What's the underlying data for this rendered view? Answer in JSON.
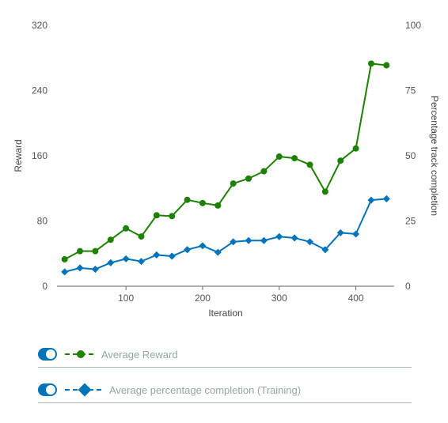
{
  "chart_data": {
    "type": "line",
    "xlabel": "Iteration",
    "ylabel_left": "Reward",
    "ylabel_right": "Percentage track completion",
    "xlim": [
      10,
      450
    ],
    "ylim_left": [
      0,
      320
    ],
    "ylim_right": [
      0,
      100
    ],
    "xticks": [
      100,
      200,
      300,
      400
    ],
    "yticks_left": [
      0,
      80,
      160,
      240,
      320
    ],
    "yticks_right": [
      0,
      25,
      50,
      75,
      100
    ],
    "x": [
      20,
      40,
      60,
      80,
      100,
      120,
      140,
      160,
      180,
      200,
      220,
      240,
      260,
      280,
      300,
      320,
      340,
      360,
      380,
      400,
      420,
      440
    ],
    "series": [
      {
        "name": "Average Reward",
        "axis": "left",
        "color": "#1d8102",
        "marker": "circle",
        "values": [
          33,
          43,
          43,
          57,
          71,
          61,
          87,
          86,
          106,
          102,
          99,
          126,
          132,
          141,
          159,
          157,
          149,
          116,
          154,
          169,
          273,
          271
        ]
      },
      {
        "name": "Average percentage completion (Training)",
        "axis": "right",
        "color": "#0073bb",
        "marker": "diamond",
        "values": [
          5.5,
          7,
          6.5,
          9,
          10.5,
          9.5,
          12,
          11.5,
          14,
          15.5,
          13,
          17,
          17.5,
          17.5,
          19,
          18.5,
          17,
          14,
          20.5,
          20,
          33,
          33.5
        ]
      }
    ]
  },
  "legend": {
    "items": [
      {
        "label": "Average Reward",
        "enabled": true
      },
      {
        "label": "Average percentage completion (Training)",
        "enabled": true
      }
    ]
  },
  "toggle_color": "#0073bb"
}
